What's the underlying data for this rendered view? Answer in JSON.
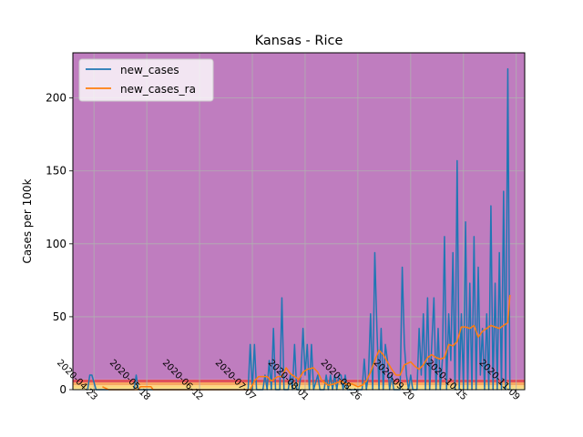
{
  "chart_data": {
    "type": "line",
    "title": "Kansas - Rice",
    "xlabel": "",
    "ylabel": "Cases per 100k",
    "xlim": [
      "2020-04-13",
      "2020-11-13"
    ],
    "ylim": [
      0,
      231
    ],
    "x_tick_labels": [
      "2020-04-23",
      "2020-05-18",
      "2020-06-12",
      "2020-07-07",
      "2020-08-01",
      "2020-08-26",
      "2020-09-20",
      "2020-10-15",
      "2020-11-09"
    ],
    "y_ticks": [
      0,
      50,
      100,
      150,
      200
    ],
    "grid": true,
    "legend_placement": "top-left",
    "background_bands": [
      {
        "from": 0,
        "to": 1,
        "color": "#fff3a0"
      },
      {
        "from": 1,
        "to": 3,
        "color": "#fcd87e"
      },
      {
        "from": 3,
        "to": 5,
        "color": "#f7a862"
      },
      {
        "from": 5,
        "to": 7,
        "color": "#e0505c"
      },
      {
        "from": 7,
        "to": 231,
        "color": "#bf7dbf"
      }
    ],
    "series": [
      {
        "name": "new_cases",
        "color": "#1f77b4",
        "points": [
          [
            "2020-04-20",
            0
          ],
          [
            "2020-04-21",
            10
          ],
          [
            "2020-04-22",
            10
          ],
          [
            "2020-04-23",
            5
          ],
          [
            "2020-04-24",
            0
          ],
          [
            "2020-05-12",
            0
          ],
          [
            "2020-05-13",
            10
          ],
          [
            "2020-05-14",
            0
          ],
          [
            "2020-07-05",
            0
          ],
          [
            "2020-07-06",
            31
          ],
          [
            "2020-07-07",
            0
          ],
          [
            "2020-07-08",
            31
          ],
          [
            "2020-07-09",
            0
          ],
          [
            "2020-07-12",
            0
          ],
          [
            "2020-07-13",
            10
          ],
          [
            "2020-07-14",
            0
          ],
          [
            "2020-07-15",
            20
          ],
          [
            "2020-07-16",
            0
          ],
          [
            "2020-07-17",
            42
          ],
          [
            "2020-07-18",
            0
          ],
          [
            "2020-07-20",
            0
          ],
          [
            "2020-07-21",
            63
          ],
          [
            "2020-07-22",
            0
          ],
          [
            "2020-07-24",
            0
          ],
          [
            "2020-07-25",
            10
          ],
          [
            "2020-07-26",
            0
          ],
          [
            "2020-07-27",
            31
          ],
          [
            "2020-07-28",
            0
          ],
          [
            "2020-07-29",
            0
          ],
          [
            "2020-07-30",
            10
          ],
          [
            "2020-07-31",
            42
          ],
          [
            "2020-08-01",
            10
          ],
          [
            "2020-08-02",
            31
          ],
          [
            "2020-08-03",
            0
          ],
          [
            "2020-08-04",
            31
          ],
          [
            "2020-08-05",
            0
          ],
          [
            "2020-08-07",
            10
          ],
          [
            "2020-08-08",
            0
          ],
          [
            "2020-08-10",
            0
          ],
          [
            "2020-08-11",
            10
          ],
          [
            "2020-08-12",
            0
          ],
          [
            "2020-08-13",
            10
          ],
          [
            "2020-08-14",
            0
          ],
          [
            "2020-08-15",
            10
          ],
          [
            "2020-08-16",
            0
          ],
          [
            "2020-08-17",
            10
          ],
          [
            "2020-08-18",
            10
          ],
          [
            "2020-08-19",
            0
          ],
          [
            "2020-08-20",
            10
          ],
          [
            "2020-08-21",
            0
          ],
          [
            "2020-08-28",
            0
          ],
          [
            "2020-08-29",
            21
          ],
          [
            "2020-08-30",
            0
          ],
          [
            "2020-08-31",
            10
          ],
          [
            "2020-09-01",
            52
          ],
          [
            "2020-09-02",
            0
          ],
          [
            "2020-09-03",
            94
          ],
          [
            "2020-09-04",
            42
          ],
          [
            "2020-09-05",
            0
          ],
          [
            "2020-09-06",
            42
          ],
          [
            "2020-09-07",
            0
          ],
          [
            "2020-09-08",
            31
          ],
          [
            "2020-09-09",
            20
          ],
          [
            "2020-09-10",
            0
          ],
          [
            "2020-09-11",
            10
          ],
          [
            "2020-09-12",
            0
          ],
          [
            "2020-09-15",
            0
          ],
          [
            "2020-09-16",
            84
          ],
          [
            "2020-09-17",
            31
          ],
          [
            "2020-09-18",
            10
          ],
          [
            "2020-09-19",
            0
          ],
          [
            "2020-09-20",
            10
          ],
          [
            "2020-09-21",
            0
          ],
          [
            "2020-09-23",
            0
          ],
          [
            "2020-09-24",
            42
          ],
          [
            "2020-09-25",
            10
          ],
          [
            "2020-09-26",
            52
          ],
          [
            "2020-09-27",
            0
          ],
          [
            "2020-09-28",
            63
          ],
          [
            "2020-09-29",
            0
          ],
          [
            "2020-10-01",
            63
          ],
          [
            "2020-10-02",
            0
          ],
          [
            "2020-10-03",
            42
          ],
          [
            "2020-10-04",
            0
          ],
          [
            "2020-10-05",
            20
          ],
          [
            "2020-10-06",
            105
          ],
          [
            "2020-10-07",
            0
          ],
          [
            "2020-10-08",
            52
          ],
          [
            "2020-10-09",
            20
          ],
          [
            "2020-10-10",
            94
          ],
          [
            "2020-10-11",
            0
          ],
          [
            "2020-10-12",
            157
          ],
          [
            "2020-10-13",
            0
          ],
          [
            "2020-10-14",
            52
          ],
          [
            "2020-10-15",
            0
          ],
          [
            "2020-10-16",
            115
          ],
          [
            "2020-10-17",
            0
          ],
          [
            "2020-10-18",
            73
          ],
          [
            "2020-10-19",
            0
          ],
          [
            "2020-10-20",
            105
          ],
          [
            "2020-10-21",
            0
          ],
          [
            "2020-10-22",
            84
          ],
          [
            "2020-10-23",
            10
          ],
          [
            "2020-10-24",
            42
          ],
          [
            "2020-10-25",
            0
          ],
          [
            "2020-10-26",
            52
          ],
          [
            "2020-10-27",
            0
          ],
          [
            "2020-10-28",
            126
          ],
          [
            "2020-10-29",
            0
          ],
          [
            "2020-10-30",
            73
          ],
          [
            "2020-10-31",
            0
          ],
          [
            "2020-11-01",
            94
          ],
          [
            "2020-11-02",
            0
          ],
          [
            "2020-11-03",
            136
          ],
          [
            "2020-11-04",
            0
          ],
          [
            "2020-11-05",
            220
          ],
          [
            "2020-11-06",
            0
          ]
        ]
      },
      {
        "name": "new_cases_ra",
        "color": "#ff7f0e",
        "points": [
          [
            "2020-04-27",
            2
          ],
          [
            "2020-04-30",
            0
          ],
          [
            "2020-05-14",
            0
          ],
          [
            "2020-05-15",
            2
          ],
          [
            "2020-05-20",
            2
          ],
          [
            "2020-05-21",
            0
          ],
          [
            "2020-07-06",
            0
          ],
          [
            "2020-07-08",
            6
          ],
          [
            "2020-07-10",
            9
          ],
          [
            "2020-07-14",
            9
          ],
          [
            "2020-07-16",
            6
          ],
          [
            "2020-07-19",
            9
          ],
          [
            "2020-07-21",
            9
          ],
          [
            "2020-07-23",
            15
          ],
          [
            "2020-07-25",
            11
          ],
          [
            "2020-07-27",
            9
          ],
          [
            "2020-07-29",
            7
          ],
          [
            "2020-07-31",
            12
          ],
          [
            "2020-08-02",
            14
          ],
          [
            "2020-08-05",
            15
          ],
          [
            "2020-08-07",
            12
          ],
          [
            "2020-08-09",
            6
          ],
          [
            "2020-08-12",
            3
          ],
          [
            "2020-08-15",
            4
          ],
          [
            "2020-08-18",
            6
          ],
          [
            "2020-08-20",
            4
          ],
          [
            "2020-08-23",
            4
          ],
          [
            "2020-08-26",
            2
          ],
          [
            "2020-08-28",
            3
          ],
          [
            "2020-08-30",
            6
          ],
          [
            "2020-09-01",
            12
          ],
          [
            "2020-09-03",
            20
          ],
          [
            "2020-09-05",
            27
          ],
          [
            "2020-09-07",
            24
          ],
          [
            "2020-09-09",
            19
          ],
          [
            "2020-09-11",
            14
          ],
          [
            "2020-09-13",
            10
          ],
          [
            "2020-09-15",
            10
          ],
          [
            "2020-09-17",
            17
          ],
          [
            "2020-09-20",
            19
          ],
          [
            "2020-09-22",
            16
          ],
          [
            "2020-09-24",
            14
          ],
          [
            "2020-09-26",
            17
          ],
          [
            "2020-09-28",
            22
          ],
          [
            "2020-09-30",
            24
          ],
          [
            "2020-10-02",
            22
          ],
          [
            "2020-10-04",
            21
          ],
          [
            "2020-10-06",
            22
          ],
          [
            "2020-10-08",
            31
          ],
          [
            "2020-10-10",
            30
          ],
          [
            "2020-10-12",
            33
          ],
          [
            "2020-10-14",
            43
          ],
          [
            "2020-10-16",
            43
          ],
          [
            "2020-10-18",
            42
          ],
          [
            "2020-10-20",
            44
          ],
          [
            "2020-10-22",
            36
          ],
          [
            "2020-10-24",
            40
          ],
          [
            "2020-10-26",
            42
          ],
          [
            "2020-10-28",
            44
          ],
          [
            "2020-10-30",
            43
          ],
          [
            "2020-11-01",
            42
          ],
          [
            "2020-11-03",
            44
          ],
          [
            "2020-11-05",
            46
          ],
          [
            "2020-11-06",
            65
          ]
        ]
      }
    ]
  }
}
